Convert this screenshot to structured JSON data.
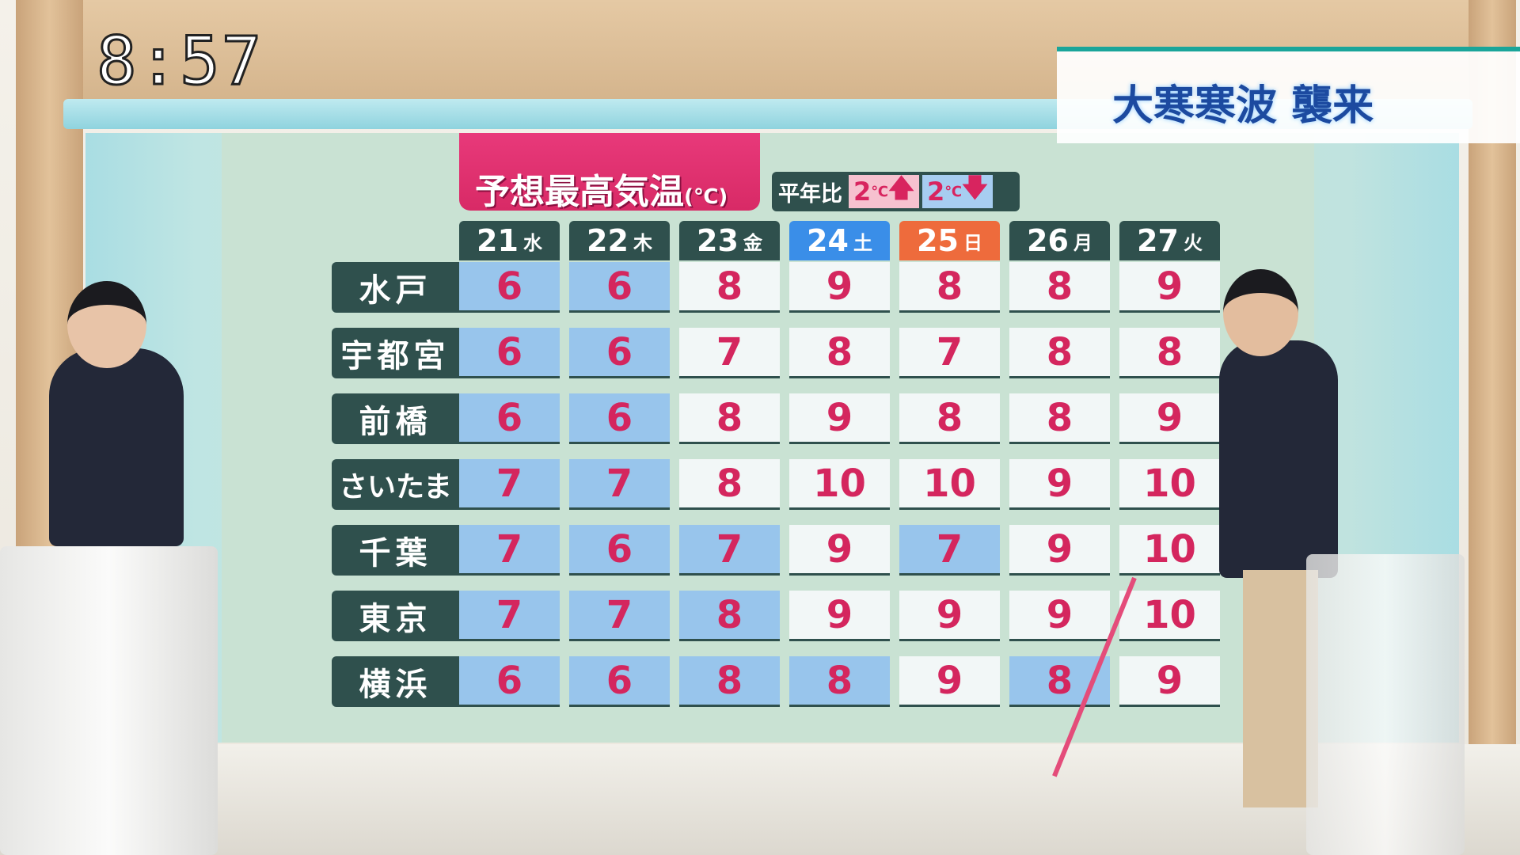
{
  "clock": "8:57",
  "banner": "大寒寒波 襲来",
  "title": {
    "main": "予想最高気温",
    "unit": "(℃)"
  },
  "legend": {
    "label": "平年比",
    "warm": {
      "value": "2",
      "unit": "℃",
      "arrow": "🡅"
    },
    "cold": {
      "value": "2",
      "unit": "℃",
      "arrow": "🡇"
    }
  },
  "colors": {
    "header_default": "#2f504d",
    "saturday": "#3a8ee8",
    "sunday": "#ee6b3c",
    "below_normal_cell": "#98c5ec",
    "normal_cell": "#f2f7f7",
    "temperature_text": "#d4265e",
    "title_bg": "#e8397a"
  },
  "days": [
    {
      "date": "21",
      "dow": "水",
      "type": "weekday"
    },
    {
      "date": "22",
      "dow": "木",
      "type": "weekday"
    },
    {
      "date": "23",
      "dow": "金",
      "type": "weekday"
    },
    {
      "date": "24",
      "dow": "土",
      "type": "saturday"
    },
    {
      "date": "25",
      "dow": "日",
      "type": "sunday"
    },
    {
      "date": "26",
      "dow": "月",
      "type": "weekday"
    },
    {
      "date": "27",
      "dow": "火",
      "type": "weekday"
    }
  ],
  "rows": [
    {
      "city": "水戸",
      "temps": [
        "6",
        "6",
        "8",
        "9",
        "8",
        "8",
        "9"
      ],
      "below_normal": [
        true,
        true,
        false,
        false,
        false,
        false,
        false
      ]
    },
    {
      "city": "宇都宮",
      "temps": [
        "6",
        "6",
        "7",
        "8",
        "7",
        "8",
        "8"
      ],
      "below_normal": [
        true,
        true,
        false,
        false,
        false,
        false,
        false
      ]
    },
    {
      "city": "前橋",
      "temps": [
        "6",
        "6",
        "8",
        "9",
        "8",
        "8",
        "9"
      ],
      "below_normal": [
        true,
        true,
        false,
        false,
        false,
        false,
        false
      ]
    },
    {
      "city": "さいたま",
      "temps": [
        "7",
        "7",
        "8",
        "10",
        "10",
        "9",
        "10"
      ],
      "below_normal": [
        true,
        true,
        false,
        false,
        false,
        false,
        false
      ]
    },
    {
      "city": "千葉",
      "temps": [
        "7",
        "6",
        "7",
        "9",
        "7",
        "9",
        "10"
      ],
      "below_normal": [
        true,
        true,
        true,
        false,
        true,
        false,
        false
      ]
    },
    {
      "city": "東京",
      "temps": [
        "7",
        "7",
        "8",
        "9",
        "9",
        "9",
        "10"
      ],
      "below_normal": [
        true,
        true,
        true,
        false,
        false,
        false,
        false
      ]
    },
    {
      "city": "横浜",
      "temps": [
        "6",
        "6",
        "8",
        "8",
        "9",
        "8",
        "9"
      ],
      "below_normal": [
        true,
        true,
        true,
        true,
        false,
        true,
        false
      ]
    }
  ]
}
